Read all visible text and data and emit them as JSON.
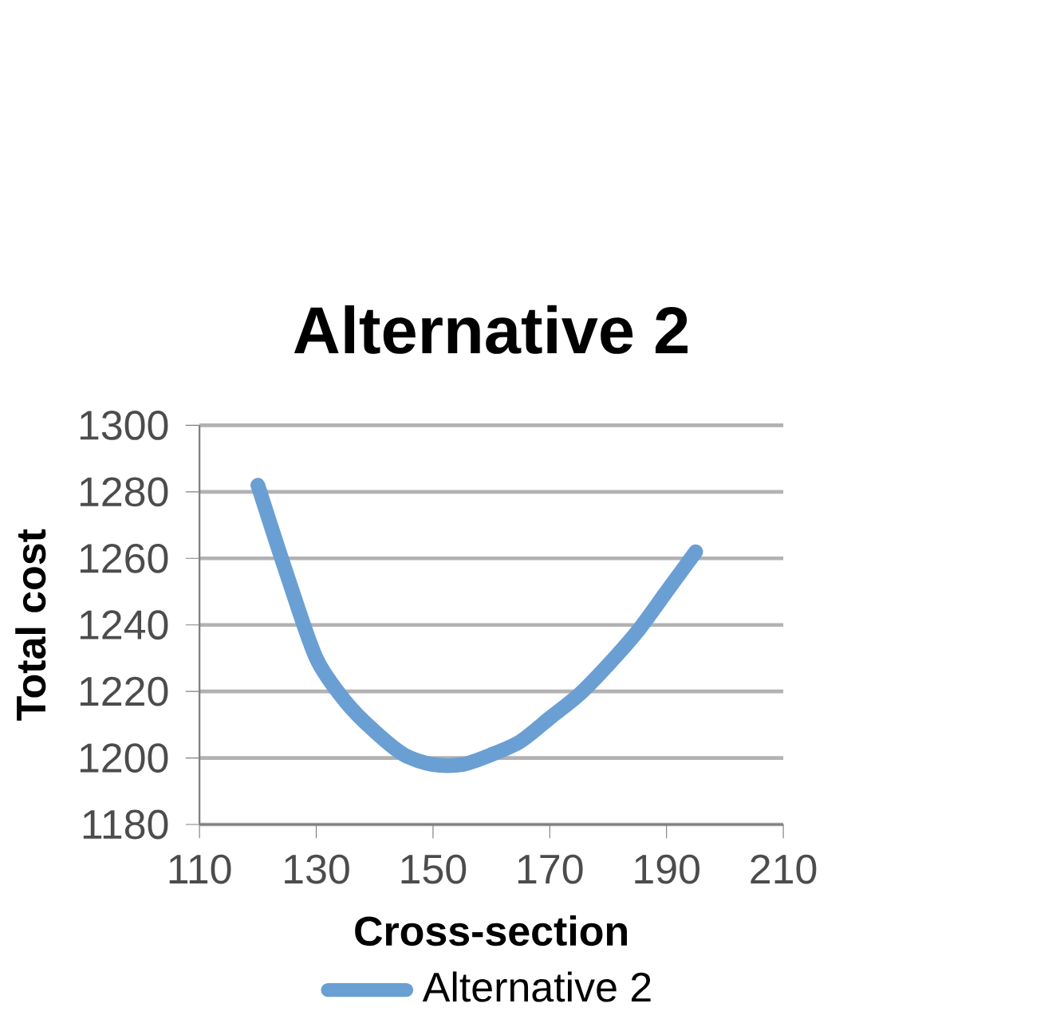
{
  "chart_data": {
    "type": "line",
    "title": "Alternative 2",
    "xlabel": "Cross-section",
    "ylabel": "Total cost",
    "x": [
      120,
      125,
      130,
      135,
      140,
      145,
      150,
      155,
      160,
      165,
      170,
      175,
      180,
      185,
      190,
      195
    ],
    "series": [
      {
        "name": "Alternative 2",
        "color": "#6a9fd4",
        "values": [
          1282,
          1255,
          1230,
          1217,
          1208,
          1201,
          1198,
          1198,
          1201,
          1205,
          1212,
          1219,
          1228,
          1238,
          1250,
          1262
        ]
      }
    ],
    "xlim": [
      110,
      210
    ],
    "xticks": [
      110,
      130,
      150,
      170,
      190,
      210
    ],
    "ylim": [
      1180,
      1300
    ],
    "yticks": [
      1180,
      1200,
      1220,
      1240,
      1260,
      1280,
      1300
    ],
    "grid": "y",
    "legend": "bottom",
    "line_style": "solid"
  }
}
